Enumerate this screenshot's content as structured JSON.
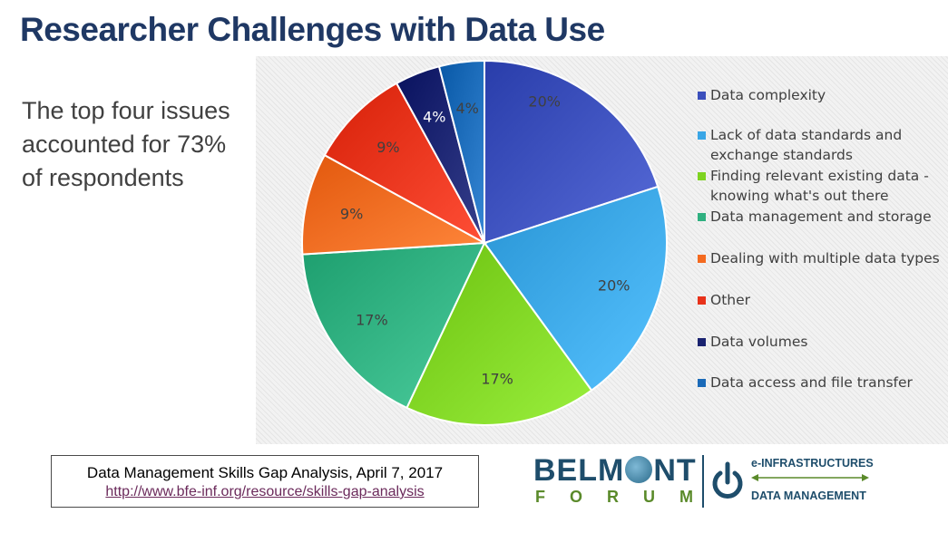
{
  "slide": {
    "title": "Researcher Challenges with Data Use",
    "intro": "The top four issues accounted for 73% of respondents"
  },
  "chart_data": {
    "type": "pie",
    "title": "",
    "start_angle_deg": 0,
    "direction": "clockwise",
    "legend_position": "right",
    "categories": [
      "Data complexity",
      "Lack of data standards and exchange standards",
      "Finding relevant existing data - knowing what's out there",
      "Data management and storage",
      "Dealing with multiple data types",
      "Other",
      "Data volumes",
      "Data access and file transfer"
    ],
    "values": [
      20,
      20,
      17,
      17,
      9,
      9,
      4,
      4
    ],
    "labels": [
      "20%",
      "20%",
      "17%",
      "17%",
      "9%",
      "9%",
      "4%",
      "4%"
    ],
    "colors": [
      "#3b4fbc",
      "#3aa6e6",
      "#7ed321",
      "#2fb080",
      "#f46a1f",
      "#e8321a",
      "#1a2370",
      "#1a6ab8"
    ],
    "label_colors": [
      "#404040",
      "#404040",
      "#404040",
      "#404040",
      "#404040",
      "#404040",
      "#ffffff",
      "#404040"
    ]
  },
  "citation": {
    "title": "Data Management Skills Gap Analysis, April 7, 2017",
    "url": "http://www.bfe-inf.org/resource/skills-gap-analysis"
  },
  "logo": {
    "belmont_prefix": "BELM",
    "belmont_suffix": "NT",
    "forum": "FORUM",
    "einfrastructures": "e-INFRASTRUCTURES",
    "data_management": "DATA MANAGEMENT"
  }
}
